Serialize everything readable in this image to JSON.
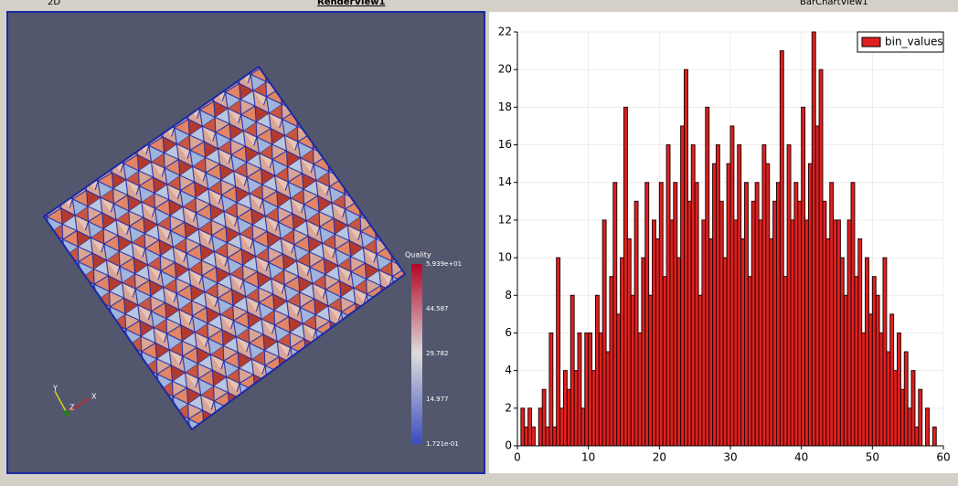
{
  "toolbar": {
    "mode": "2D",
    "render_view": "RenderView1",
    "chart_view": "BarChartView1"
  },
  "render_view": {
    "colorbar": {
      "title": "Quality",
      "ticks": [
        "5.939e+01",
        "44.587",
        "29.782",
        "14.977",
        "1.721e-01"
      ]
    },
    "axes": [
      "X",
      "Y",
      "Z"
    ]
  },
  "chart_data": {
    "type": "histogram",
    "bins": [
      0,
      0.5,
      1,
      1.5,
      2,
      2.5,
      3,
      3.5,
      4,
      4.5,
      5,
      5.5,
      6,
      6.5,
      7,
      7.5,
      8,
      8.5,
      9,
      9.5,
      10,
      10.5,
      11,
      11.5,
      12,
      12.5,
      13,
      13.5,
      14,
      14.5,
      15,
      15.5,
      16,
      16.5,
      17,
      17.5,
      18,
      18.5,
      19,
      19.5,
      20,
      20.5,
      21,
      21.5,
      22,
      22.5,
      23,
      23.5,
      24,
      24.5,
      25,
      25.5,
      26,
      26.5,
      27,
      27.5,
      28,
      28.5,
      29,
      29.5,
      30,
      30.5,
      31,
      31.5,
      32,
      32.5,
      33,
      33.5,
      34,
      34.5,
      35,
      35.5,
      36,
      36.5,
      37,
      37.5,
      38,
      38.5,
      39,
      39.5,
      40,
      40.5,
      41,
      41.5,
      42,
      42.5,
      43,
      43.5,
      44,
      44.5,
      45,
      45.5,
      46,
      46.5,
      47,
      47.5,
      48,
      48.5,
      49,
      49.5,
      50,
      50.5,
      51,
      51.5,
      52,
      52.5,
      53,
      53.5,
      54,
      54.5,
      55,
      55.5,
      56,
      56.5,
      57,
      57.5,
      58,
      58.5,
      59,
      59.5,
      60
    ],
    "series": [
      {
        "name": "bin_values",
        "color": "#e02020",
        "values": [
          0,
          2,
          1,
          2,
          1,
          0,
          2,
          3,
          1,
          6,
          1,
          10,
          2,
          4,
          3,
          8,
          4,
          6,
          2,
          6,
          6,
          4,
          8,
          6,
          12,
          5,
          9,
          14,
          7,
          10,
          18,
          11,
          8,
          13,
          6,
          10,
          14,
          8,
          12,
          11,
          14,
          9,
          16,
          12,
          14,
          10,
          17,
          20,
          13,
          16,
          14,
          8,
          12,
          18,
          11,
          15,
          16,
          13,
          10,
          15,
          17,
          12,
          16,
          11,
          14,
          9,
          13,
          14,
          12,
          16,
          15,
          11,
          13,
          14,
          21,
          9,
          16,
          12,
          14,
          13,
          18,
          12,
          15,
          22,
          17,
          20,
          13,
          11,
          14,
          12,
          12,
          10,
          8,
          12,
          14,
          9,
          11,
          6,
          10,
          7,
          9,
          8,
          6,
          10,
          5,
          7,
          4,
          6,
          3,
          5,
          2,
          4,
          1,
          3,
          0,
          2,
          0,
          1,
          0,
          0
        ]
      }
    ],
    "xlim": [
      0,
      60
    ],
    "xticks": [
      0,
      10,
      20,
      30,
      40,
      50,
      60
    ],
    "ylim": [
      0,
      22
    ],
    "yticks": [
      0,
      2,
      4,
      6,
      8,
      10,
      12,
      14,
      16,
      18,
      20,
      22
    ],
    "grid": true,
    "legend": "top-right"
  }
}
